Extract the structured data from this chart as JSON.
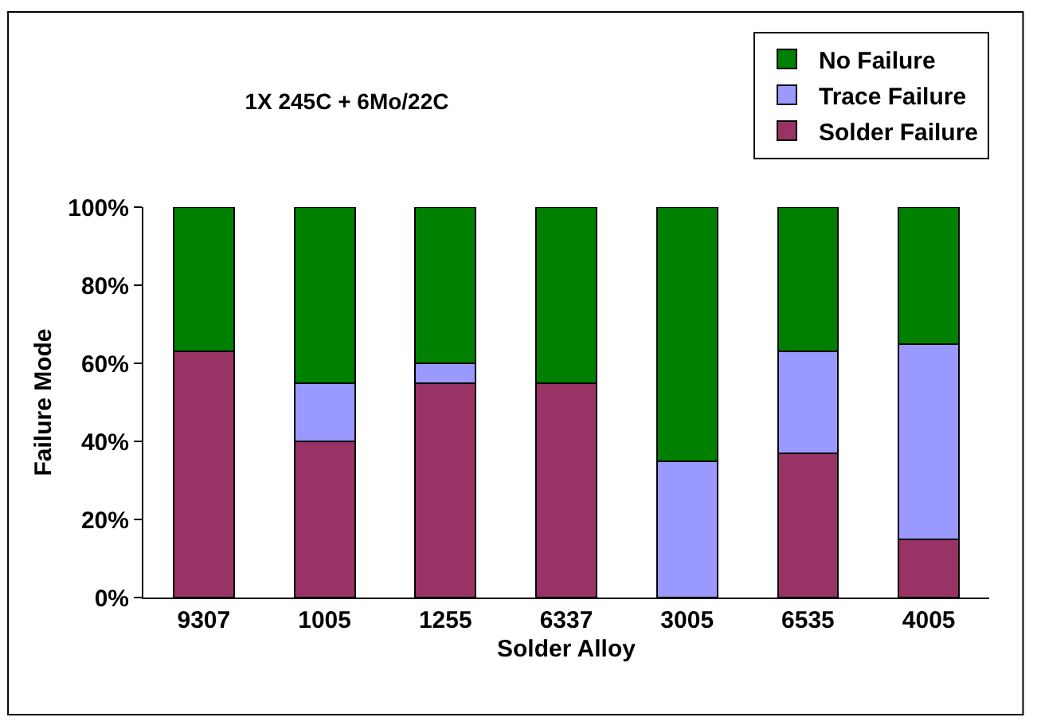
{
  "chart_data": {
    "type": "bar",
    "title": "1X 245C + 6Mo/22C",
    "xlabel": "Solder Alloy",
    "ylabel": "Failure Mode",
    "categories": [
      "9307",
      "1005",
      "1255",
      "6337",
      "3005",
      "6535",
      "4005"
    ],
    "series": [
      {
        "name": "Solder Failure",
        "color": "#993366",
        "values": [
          63,
          40,
          55,
          55,
          0,
          37,
          15
        ]
      },
      {
        "name": "Trace Failure",
        "color": "#9999ff",
        "values": [
          0,
          15,
          5,
          0,
          35,
          26,
          50
        ]
      },
      {
        "name": "No Failure",
        "color": "#008000",
        "values": [
          37,
          45,
          40,
          45,
          65,
          37,
          35
        ]
      }
    ],
    "stacked": true,
    "ylim": [
      0,
      100
    ],
    "yticks": [
      {
        "value": 0,
        "label": "0%"
      },
      {
        "value": 20,
        "label": "20%"
      },
      {
        "value": 40,
        "label": "40%"
      },
      {
        "value": 60,
        "label": "60%"
      },
      {
        "value": 80,
        "label": "80%"
      },
      {
        "value": 100,
        "label": "100%"
      }
    ],
    "grid": false,
    "legend": "top right"
  }
}
